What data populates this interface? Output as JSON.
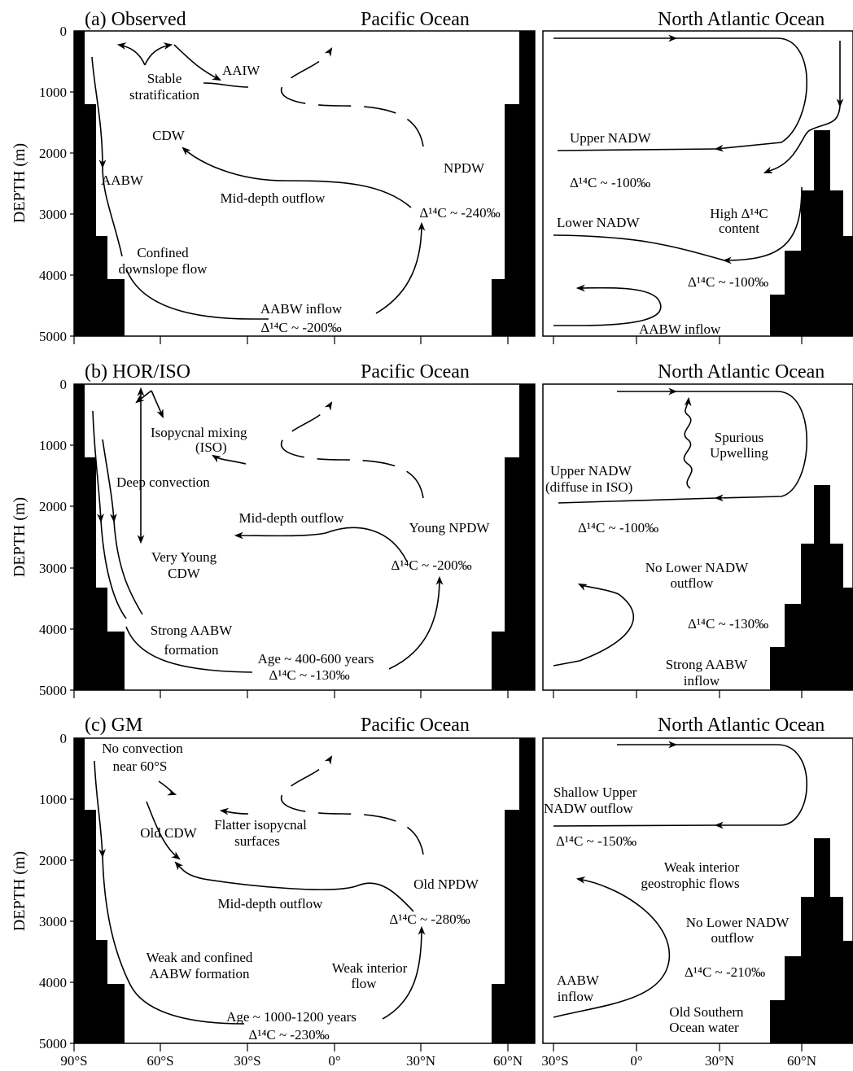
{
  "y_axis_label": "DEPTH (m)",
  "depth_ticks": [
    "0",
    "1000",
    "2000",
    "3000",
    "4000",
    "5000"
  ],
  "pacific_x_ticks": [
    "90°S",
    "60°S",
    "30°S",
    "0°",
    "30°N",
    "60°N"
  ],
  "atlantic_x_ticks": [
    "30°S",
    "0°",
    "30°N",
    "60°N"
  ],
  "panels": [
    {
      "id": "a",
      "title": "(a) Observed",
      "pacific_title": "Pacific Ocean",
      "atlantic_title": "North Atlantic Ocean",
      "pacific_labels": {
        "aaiw": "AAIW",
        "stable1": "Stable",
        "stable2": "stratification",
        "cdw": "CDW",
        "aabw": "AABW",
        "npdw": "NPDW",
        "middepth": "Mid-depth outflow",
        "d14c_npdw": "Δ¹⁴C ~ -240‰",
        "confined1": "Confined",
        "confined2": "downslope flow",
        "inflow": "AABW inflow",
        "d14c_inflow": "Δ¹⁴C ~ -200‰"
      },
      "atlantic_labels": {
        "upper_nadw": "Upper NADW",
        "d14c_upper": "Δ¹⁴C ~ -100‰",
        "high1": "High Δ¹⁴C",
        "high2": "content",
        "lower_nadw": "Lower NADW",
        "d14c_lower": "Δ¹⁴C ~ -100‰",
        "aabw_inflow": "AABW inflow"
      }
    },
    {
      "id": "b",
      "title": "(b) HOR/ISO",
      "pacific_title": "Pacific Ocean",
      "atlantic_title": "North Atlantic Ocean",
      "pacific_labels": {
        "iso1": "Isopycnal mixing",
        "iso2": "(ISO)",
        "deep_conv": "Deep convection",
        "middepth": "Mid-depth outflow",
        "young_npdw": "Young NPDW",
        "very_young1": "Very Young",
        "very_young2": "CDW",
        "d14c_npdw": "Δ¹⁴C ~ -200‰",
        "strong1": "Strong AABW",
        "strong2": "formation",
        "age": "Age ~ 400-600 years",
        "d14c_inflow": "Δ¹⁴C ~ -130‰"
      },
      "atlantic_labels": {
        "spurious1": "Spurious",
        "spurious2": "Upwelling",
        "upper1": "Upper NADW",
        "upper2": "(diffuse in ISO)",
        "d14c_upper": "Δ¹⁴C ~ -100‰",
        "nolower1": "No Lower NADW",
        "nolower2": "outflow",
        "d14c_lower": "Δ¹⁴C ~ -130‰",
        "strong1": "Strong AABW",
        "strong2": "inflow"
      }
    },
    {
      "id": "c",
      "title": "(c) GM",
      "pacific_title": "Pacific Ocean",
      "atlantic_title": "North Atlantic Ocean",
      "pacific_labels": {
        "noconv1": "No convection",
        "noconv2": "near 60°S",
        "flatter1": "Flatter isopycnal",
        "flatter2": "surfaces",
        "old_cdw": "Old CDW",
        "middepth": "Mid-depth outflow",
        "old_npdw": "Old NPDW",
        "d14c_npdw": "Δ¹⁴C ~ -280‰",
        "weak1": "Weak and confined",
        "weak2": "AABW formation",
        "weakint1": "Weak interior",
        "weakint2": "flow",
        "age": "Age ~ 1000-1200 years",
        "d14c_inflow": "Δ¹⁴C ~ -230‰"
      },
      "atlantic_labels": {
        "shallow1": "Shallow Upper",
        "shallow2": "NADW outflow",
        "d14c_upper": "Δ¹⁴C ~ -150‰",
        "weakgeo1": "Weak interior",
        "weakgeo2": "geostrophic flows",
        "nolower1": "No Lower NADW",
        "nolower2": "outflow",
        "d14c_lower": "Δ¹⁴C ~ -210‰",
        "aabw1": "AABW",
        "aabw2": "inflow",
        "old1": "Old Southern",
        "old2": "Ocean water"
      }
    }
  ]
}
